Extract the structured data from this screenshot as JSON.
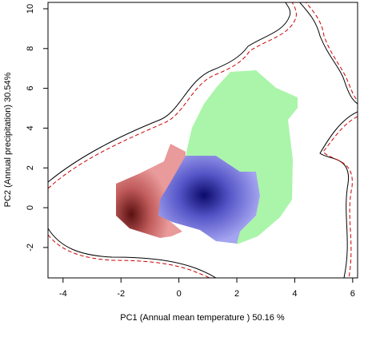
{
  "chart_data": {
    "type": "niche",
    "xlabel": "PC1 (Annual mean temperature ) 50.16 %",
    "ylabel": "PC2 (Annual precipitation) 30.54%",
    "xlim": [
      -4.52,
      6.17
    ],
    "ylim": [
      -3.53,
      10.32
    ],
    "xticks": [
      -4,
      -2,
      0,
      2,
      4,
      6
    ],
    "yticks": [
      -2,
      0,
      2,
      4,
      6,
      8,
      10
    ]
  }
}
